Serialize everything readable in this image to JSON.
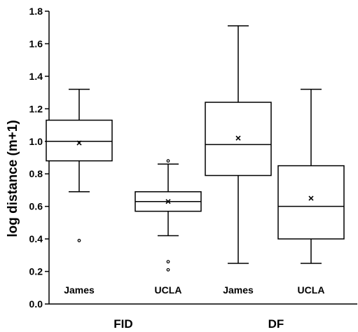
{
  "chart_data": {
    "type": "box",
    "ylabel": "log distance (m+1)",
    "ylim": [
      0.0,
      1.8
    ],
    "yticks": [
      "0.0",
      "0.2",
      "0.4",
      "0.6",
      "0.8",
      "1.0",
      "1.2",
      "1.4",
      "1.6",
      "1.8"
    ],
    "groups": [
      {
        "label": "FID",
        "categories": [
          "James",
          "UCLA"
        ]
      },
      {
        "label": "DF",
        "categories": [
          "James",
          "UCLA"
        ]
      }
    ],
    "boxes": [
      {
        "group": "FID",
        "category": "James",
        "whisker_low": 0.69,
        "q1": 0.88,
        "median": 1.0,
        "q3": 1.13,
        "whisker_high": 1.32,
        "mean": 0.99,
        "outliers": [
          0.39
        ]
      },
      {
        "group": "FID",
        "category": "UCLA",
        "whisker_low": 0.42,
        "q1": 0.57,
        "median": 0.63,
        "q3": 0.69,
        "whisker_high": 0.86,
        "mean": 0.63,
        "outliers": [
          0.88,
          0.26,
          0.21
        ]
      },
      {
        "group": "DF",
        "category": "James",
        "whisker_low": 0.25,
        "q1": 0.79,
        "median": 0.98,
        "q3": 1.24,
        "whisker_high": 1.71,
        "mean": 1.02,
        "outliers": []
      },
      {
        "group": "DF",
        "category": "UCLA",
        "whisker_low": 0.25,
        "q1": 0.4,
        "median": 0.6,
        "q3": 0.85,
        "whisker_high": 1.32,
        "mean": 0.65,
        "outliers": []
      }
    ],
    "mean_marker": "×",
    "grid": false,
    "legend": "none"
  }
}
